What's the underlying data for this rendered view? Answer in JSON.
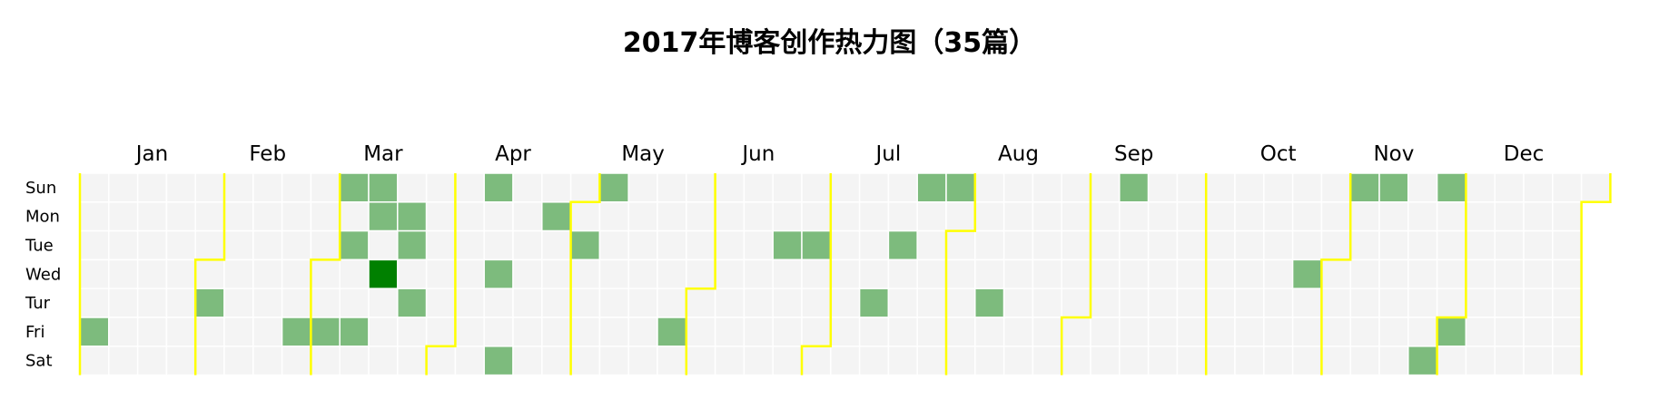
{
  "title": "2017年博客创作热力图（35篇）",
  "chart_data": {
    "type": "heatmap",
    "title": "2017年博客创作热力图（35篇）",
    "year": 2017,
    "months": [
      "Jan",
      "Feb",
      "Mar",
      "Apr",
      "May",
      "Jun",
      "Jul",
      "Aug",
      "Sep",
      "Oct",
      "Nov",
      "Dec"
    ],
    "weekdays": [
      "Sun",
      "Mon",
      "Tue",
      "Wed",
      "Tur",
      "Fri",
      "Sat"
    ],
    "posts": [
      {
        "date": "2017-01-06",
        "count": 1
      },
      {
        "date": "2017-02-02",
        "count": 1
      },
      {
        "date": "2017-02-24",
        "count": 1
      },
      {
        "date": "2017-03-03",
        "count": 1
      },
      {
        "date": "2017-03-05",
        "count": 1
      },
      {
        "date": "2017-03-07",
        "count": 1
      },
      {
        "date": "2017-03-10",
        "count": 1
      },
      {
        "date": "2017-03-12",
        "count": 1
      },
      {
        "date": "2017-03-13",
        "count": 1
      },
      {
        "date": "2017-03-15",
        "count": 2
      },
      {
        "date": "2017-03-20",
        "count": 1
      },
      {
        "date": "2017-03-21",
        "count": 1
      },
      {
        "date": "2017-03-23",
        "count": 1
      },
      {
        "date": "2017-04-09",
        "count": 1
      },
      {
        "date": "2017-04-12",
        "count": 1
      },
      {
        "date": "2017-04-15",
        "count": 1
      },
      {
        "date": "2017-04-24",
        "count": 1
      },
      {
        "date": "2017-05-02",
        "count": 1
      },
      {
        "date": "2017-05-07",
        "count": 1
      },
      {
        "date": "2017-05-26",
        "count": 1
      },
      {
        "date": "2017-06-20",
        "count": 1
      },
      {
        "date": "2017-06-27",
        "count": 1
      },
      {
        "date": "2017-07-13",
        "count": 1
      },
      {
        "date": "2017-07-18",
        "count": 1
      },
      {
        "date": "2017-07-23",
        "count": 1
      },
      {
        "date": "2017-07-30",
        "count": 1
      },
      {
        "date": "2017-08-10",
        "count": 1
      },
      {
        "date": "2017-09-10",
        "count": 1
      },
      {
        "date": "2017-10-25",
        "count": 1
      },
      {
        "date": "2017-11-05",
        "count": 1
      },
      {
        "date": "2017-11-12",
        "count": 1
      },
      {
        "date": "2017-11-26",
        "count": 1
      },
      {
        "date": "2017-11-25",
        "count": 1
      },
      {
        "date": "2017-12-01",
        "count": 1
      }
    ],
    "color_scale": {
      "0": "#f4f4f4",
      "1": "#7dbb7d",
      "2": "#008000"
    },
    "cell_border": "#ffffff",
    "month_separator_color": "#ffff00",
    "grid": true,
    "legend": "none"
  }
}
